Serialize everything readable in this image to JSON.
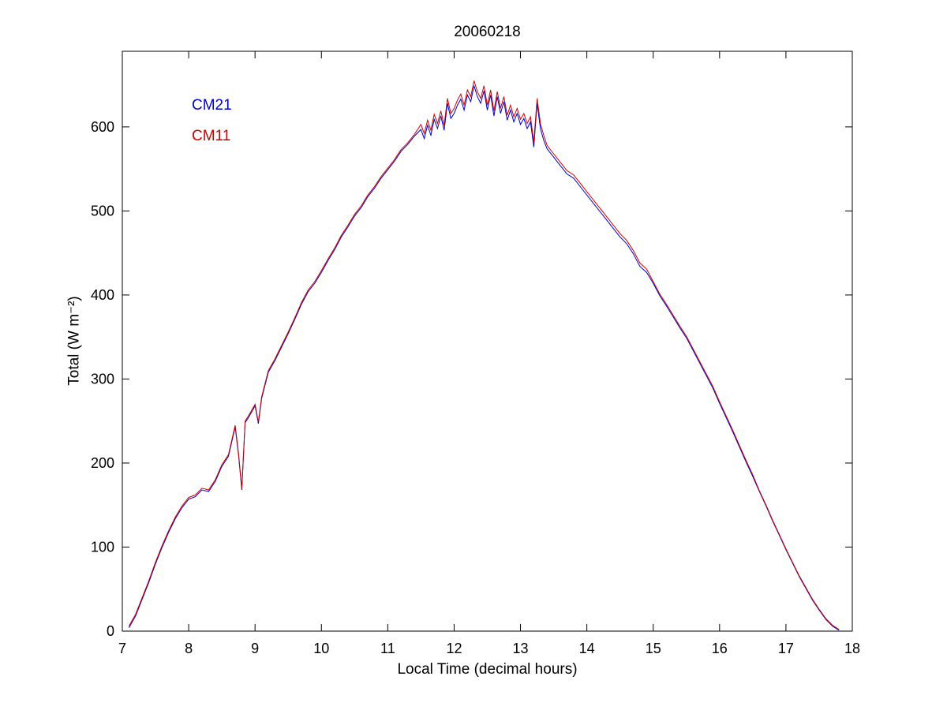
{
  "chart_data": {
    "type": "line",
    "title": "20060218",
    "xlabel": "Local Time (decimal hours)",
    "ylabel": "Total (W m⁻²)",
    "xlim": [
      7,
      18
    ],
    "ylim": [
      0,
      690
    ],
    "xticks": [
      7,
      8,
      9,
      10,
      11,
      12,
      13,
      14,
      15,
      16,
      17,
      18
    ],
    "yticks": [
      0,
      100,
      200,
      300,
      400,
      500,
      600
    ],
    "grid": false,
    "legend_position": "upper-left",
    "axis_color": "#000000",
    "background_color": "#ffffff",
    "x": [
      7.1,
      7.2,
      7.3,
      7.4,
      7.5,
      7.6,
      7.7,
      7.8,
      7.9,
      8.0,
      8.1,
      8.2,
      8.3,
      8.4,
      8.5,
      8.6,
      8.7,
      8.75,
      8.8,
      8.85,
      8.9,
      9.0,
      9.05,
      9.1,
      9.2,
      9.3,
      9.4,
      9.5,
      9.6,
      9.7,
      9.8,
      9.9,
      10.0,
      10.1,
      10.2,
      10.3,
      10.4,
      10.5,
      10.6,
      10.7,
      10.8,
      10.9,
      11.0,
      11.1,
      11.2,
      11.3,
      11.4,
      11.5,
      11.55,
      11.6,
      11.65,
      11.7,
      11.75,
      11.8,
      11.85,
      11.9,
      11.95,
      12.0,
      12.05,
      12.1,
      12.15,
      12.2,
      12.25,
      12.3,
      12.35,
      12.4,
      12.45,
      12.5,
      12.55,
      12.6,
      12.65,
      12.7,
      12.75,
      12.8,
      12.85,
      12.9,
      12.95,
      13.0,
      13.05,
      13.1,
      13.15,
      13.2,
      13.25,
      13.3,
      13.35,
      13.4,
      13.5,
      13.6,
      13.7,
      13.8,
      13.9,
      14.0,
      14.1,
      14.2,
      14.3,
      14.4,
      14.5,
      14.6,
      14.7,
      14.8,
      14.9,
      15.0,
      15.1,
      15.2,
      15.3,
      15.4,
      15.5,
      15.6,
      15.7,
      15.8,
      15.9,
      16.0,
      16.1,
      16.2,
      16.3,
      16.4,
      16.5,
      16.6,
      16.7,
      16.8,
      16.9,
      17.0,
      17.1,
      17.2,
      17.3,
      17.4,
      17.5,
      17.6,
      17.7,
      17.8
    ],
    "series": [
      {
        "name": "CM21",
        "color": "#0000cc",
        "values": [
          4,
          18,
          38,
          58,
          80,
          100,
          118,
          134,
          147,
          157,
          160,
          168,
          166,
          178,
          196,
          208,
          243,
          210,
          168,
          248,
          254,
          268,
          247,
          277,
          308,
          322,
          338,
          354,
          371,
          389,
          404,
          414,
          427,
          441,
          454,
          469,
          481,
          494,
          504,
          517,
          527,
          539,
          549,
          559,
          571,
          579,
          589,
          597,
          586,
          602,
          590,
          609,
          598,
          613,
          596,
          628,
          610,
          616,
          626,
          633,
          620,
          638,
          630,
          649,
          636,
          628,
          643,
          620,
          638,
          613,
          636,
          616,
          630,
          608,
          620,
          606,
          616,
          603,
          610,
          598,
          606,
          576,
          628,
          598,
          584,
          574,
          564,
          554,
          544,
          539,
          529,
          519,
          509,
          499,
          489,
          479,
          469,
          461,
          449,
          434,
          427,
          414,
          399,
          387,
          374,
          361,
          349,
          334,
          319,
          304,
          289,
          271,
          254,
          237,
          219,
          201,
          184,
          166,
          149,
          131,
          114,
          97,
          81,
          65,
          51,
          37,
          25,
          14,
          6,
          1
        ]
      },
      {
        "name": "CM11",
        "color": "#cc0000",
        "values": [
          6,
          20,
          40,
          60,
          82,
          102,
          120,
          136,
          149,
          159,
          162,
          170,
          168,
          180,
          198,
          210,
          245,
          212,
          170,
          250,
          256,
          270,
          249,
          279,
          310,
          324,
          340,
          356,
          373,
          391,
          406,
          416,
          429,
          443,
          456,
          471,
          483,
          496,
          506,
          519,
          529,
          541,
          551,
          561,
          573,
          581,
          591,
          603,
          592,
          608,
          596,
          615,
          604,
          619,
          602,
          634,
          616,
          622,
          632,
          639,
          626,
          644,
          636,
          655,
          642,
          634,
          649,
          626,
          644,
          619,
          642,
          622,
          636,
          614,
          626,
          612,
          622,
          609,
          616,
          604,
          612,
          582,
          634,
          604,
          590,
          578,
          568,
          558,
          548,
          543,
          533,
          523,
          513,
          503,
          493,
          483,
          473,
          465,
          453,
          438,
          431,
          416,
          401,
          389,
          376,
          363,
          351,
          336,
          321,
          306,
          291,
          273,
          256,
          239,
          221,
          203,
          186,
          167,
          150,
          132,
          115,
          98,
          82,
          66,
          52,
          38,
          26,
          15,
          7,
          2
        ]
      }
    ]
  }
}
